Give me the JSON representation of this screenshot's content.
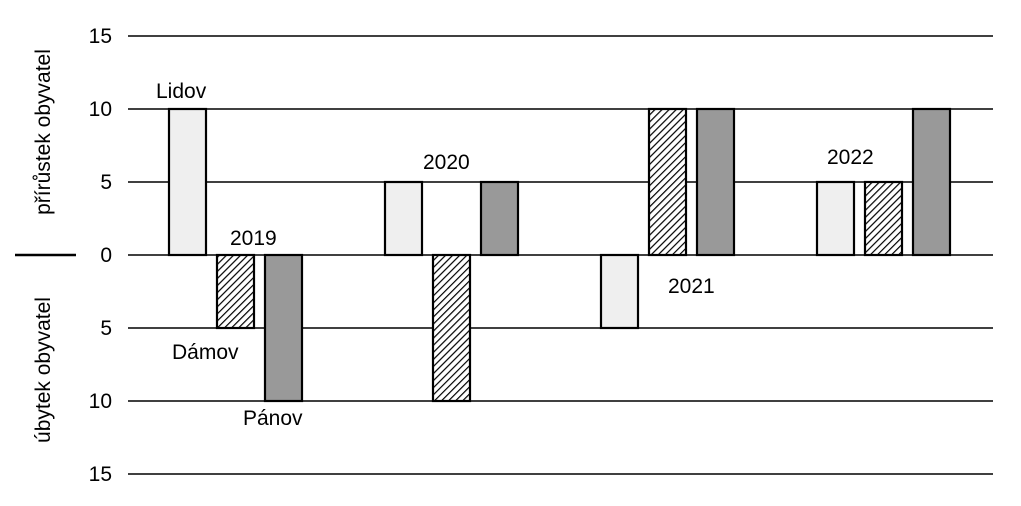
{
  "chart_data": {
    "type": "bar",
    "categories": [
      "2019",
      "2020",
      "2021",
      "2022"
    ],
    "series": [
      {
        "name": "Lidov",
        "values": [
          10,
          5,
          -5,
          5
        ],
        "color": "#efefef",
        "pattern": "none"
      },
      {
        "name": "Dámov",
        "values": [
          -5,
          -10,
          10,
          5
        ],
        "color": "#ffffff",
        "pattern": "diagonal-hatch"
      },
      {
        "name": "Pánov",
        "values": [
          -10,
          5,
          10,
          10
        ],
        "color": "#999999",
        "pattern": "none"
      }
    ],
    "ylim": [
      -15,
      15
    ],
    "yticks": [
      15,
      10,
      5,
      0,
      5,
      10,
      15
    ],
    "ylabel_positive": "přírůstek obyvatel",
    "ylabel_negative": "úbytek obyvatel",
    "grid": true,
    "annotations": {
      "years": [
        "2019",
        "2020",
        "2021",
        "2022"
      ],
      "series_labels": [
        "Lidov",
        "Dámov",
        "Pánov"
      ]
    }
  }
}
